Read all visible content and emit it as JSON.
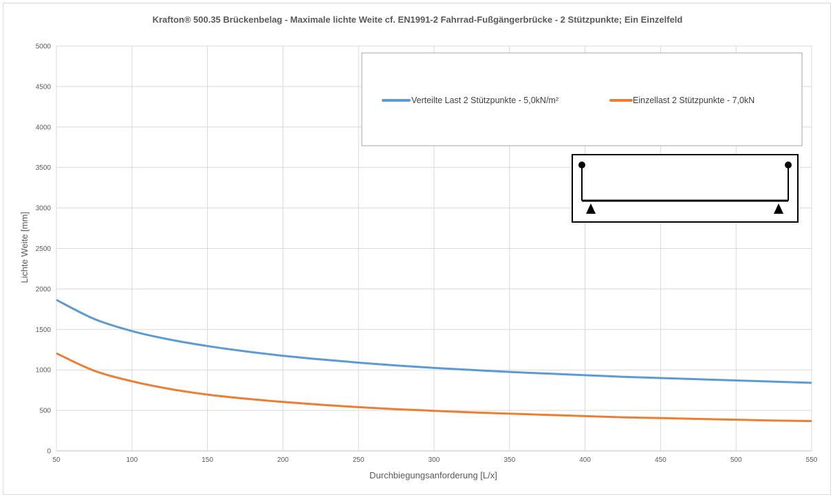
{
  "chart_data": {
    "type": "line",
    "title": "Krafton® 500.35 Brückenbelag  - Maximale lichte Weite cf. EN1991-2 Fahrrad-Fußgängerbrücke - 2 Stützpunkte; Ein Einzelfeld",
    "xlabel": "Durchbiegungsanforderung  [L/x]",
    "ylabel": "Lichte Weite [mm]",
    "xlim": [
      50,
      550
    ],
    "ylim": [
      0,
      5000
    ],
    "xticks": [
      50,
      100,
      150,
      200,
      250,
      300,
      350,
      400,
      450,
      500,
      550
    ],
    "yticks": [
      0,
      500,
      1000,
      1500,
      2000,
      2500,
      3000,
      3500,
      4000,
      4500,
      5000
    ],
    "grid": true,
    "legend_position": "top-right",
    "x": [
      50,
      75,
      100,
      125,
      150,
      175,
      200,
      225,
      250,
      275,
      300,
      325,
      350,
      375,
      400,
      425,
      450,
      475,
      500,
      525,
      550
    ],
    "series": [
      {
        "name": "Verteilte Last 2 Stützpunkte - 5,0kN/m²",
        "color": "#5b9bd5",
        "values": [
          1865,
          1630,
          1480,
          1375,
          1295,
          1230,
          1175,
          1130,
          1090,
          1055,
          1025,
          1000,
          975,
          955,
          935,
          915,
          900,
          885,
          870,
          855,
          840
        ]
      },
      {
        "name": "Einzellast 2 Stützpunkte - 7,0kN",
        "color": "#ed7d31",
        "values": [
          1205,
          990,
          860,
          765,
          695,
          645,
          605,
          570,
          540,
          515,
          495,
          475,
          460,
          445,
          430,
          415,
          405,
          395,
          385,
          375,
          368
        ]
      }
    ]
  }
}
